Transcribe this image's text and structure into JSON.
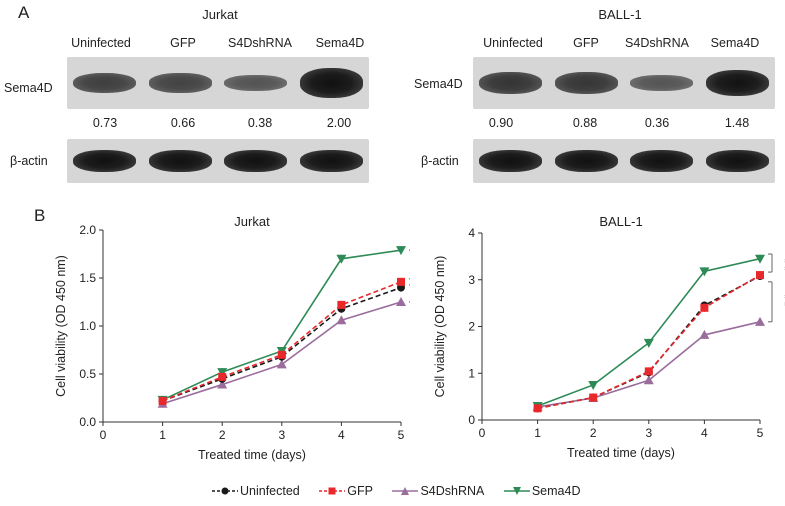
{
  "panelA": {
    "letter": "A",
    "cells": [
      {
        "title": "Jurkat",
        "lanes": [
          "Uninfected",
          "GFP",
          "S4DshRNA",
          "Sema4D"
        ],
        "target_label": "Sema4D",
        "ratios": [
          "0.73",
          "0.66",
          "0.38",
          "2.00"
        ],
        "target_band_level": [
          0.73,
          0.66,
          0.38,
          2.0
        ],
        "control_label": "β-actin"
      },
      {
        "title": "BALL-1",
        "lanes": [
          "Uninfected",
          "GFP",
          "S4DshRNA",
          "Sema4D"
        ],
        "target_label": "Sema4D",
        "ratios": [
          "0.90",
          "0.88",
          "0.36",
          "1.48"
        ],
        "target_band_level": [
          0.9,
          0.88,
          0.36,
          1.48
        ],
        "control_label": "β-actin"
      }
    ]
  },
  "panelB": {
    "letter": "B",
    "legend": [
      {
        "name": "Uninfected",
        "color": "#1a1a1a",
        "marker": "circle",
        "dash": true
      },
      {
        "name": "GFP",
        "color": "#e8282b",
        "marker": "square",
        "dash": true
      },
      {
        "name": "S4DshRNA",
        "color": "#9b6d9d",
        "marker": "triangle-up",
        "dash": false
      },
      {
        "name": "Sema4D",
        "color": "#2e8b57",
        "marker": "triangle-down",
        "dash": false
      }
    ]
  },
  "chart_data": [
    {
      "type": "line",
      "title": "Jurkat",
      "xlabel": "Treated time (days)",
      "ylabel": "Cell viability (OD 450 nm)",
      "xlim": [
        0,
        5
      ],
      "ylim": [
        0,
        2.0
      ],
      "x_ticks": [
        "0",
        "1",
        "2",
        "3",
        "4",
        "5"
      ],
      "y_ticks": [
        "0.0",
        "0.5",
        "1.0",
        "1.5",
        "2.0"
      ],
      "x": [
        1,
        2,
        3,
        4,
        5
      ],
      "series": [
        {
          "name": "Uninfected",
          "values": [
            0.22,
            0.45,
            0.68,
            1.18,
            1.4
          ]
        },
        {
          "name": "GFP",
          "values": [
            0.22,
            0.47,
            0.7,
            1.22,
            1.46
          ]
        },
        {
          "name": "S4DshRNA",
          "values": [
            0.19,
            0.39,
            0.6,
            1.06,
            1.25
          ]
        },
        {
          "name": "Sema4D",
          "values": [
            0.23,
            0.52,
            0.74,
            1.7,
            1.79
          ]
        }
      ],
      "significance": [
        {
          "label": "* * *",
          "from": 1.79,
          "to": 1.46
        },
        {
          "label": "* * *",
          "from": 1.46,
          "to": 1.25
        }
      ]
    },
    {
      "type": "line",
      "title": "BALL-1",
      "xlabel": "Treated time (days)",
      "ylabel": "Cell viability (OD 450 nm)",
      "xlim": [
        0,
        5
      ],
      "ylim": [
        0,
        4
      ],
      "x_ticks": [
        "0",
        "1",
        "2",
        "3",
        "4",
        "5"
      ],
      "y_ticks": [
        "0",
        "1",
        "2",
        "3",
        "4"
      ],
      "x": [
        1,
        2,
        3,
        4,
        5
      ],
      "series": [
        {
          "name": "Uninfected",
          "values": [
            0.25,
            0.48,
            1.02,
            2.45,
            3.08
          ]
        },
        {
          "name": "GFP",
          "values": [
            0.25,
            0.48,
            1.04,
            2.4,
            3.1
          ]
        },
        {
          "name": "S4DshRNA",
          "values": [
            0.28,
            0.47,
            0.85,
            1.82,
            2.1
          ]
        },
        {
          "name": "Sema4D",
          "values": [
            0.3,
            0.75,
            1.65,
            3.18,
            3.45
          ]
        }
      ],
      "significance": [
        {
          "label": "* *",
          "from": 3.55,
          "to": 3.1
        },
        {
          "label": "* *",
          "from": 3.02,
          "to": 2.1
        }
      ]
    }
  ]
}
